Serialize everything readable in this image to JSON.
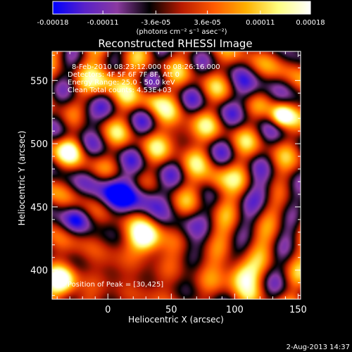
{
  "chart_data": {
    "type": "heatmap",
    "title": "Reconstructed RHESSI Image",
    "xlabel": "Heliocentric X (arcsec)",
    "ylabel": "Heliocentric Y (arcsec)",
    "xlim": [
      -44,
      152
    ],
    "ylim": [
      377,
      573
    ],
    "x_ticks": [
      0,
      50,
      100,
      150
    ],
    "y_ticks": [
      400,
      450,
      500,
      550
    ],
    "colorbar": {
      "range": [
        -0.00018,
        0.00018
      ],
      "tick_labels": [
        "-0.00018",
        "-0.00011",
        "-3.6e-05",
        "3.6e-05",
        "0.00011",
        "0.00018"
      ],
      "units": "(photons cm⁻² s⁻¹ asec⁻²)"
    },
    "annotations": [
      "8-Feb-2010 08:23:12.000 to 08:26:16.000",
      "Detectors: 4F 5F 6F 7F 8F, Att 0",
      "Energy Range: 25.0 - 50.0 keV",
      "Clean    Total counts: 4.53E+03"
    ],
    "peak_label": "Position of Peak = [30,425]",
    "peak": {
      "x": 30,
      "y": 425
    },
    "sources": [
      {
        "x": 30,
        "y": 426,
        "sigma": 9,
        "amp": 1.0
      },
      {
        "x": -36,
        "y": 392,
        "sigma": 8,
        "amp": 0.95
      },
      {
        "x": 105,
        "y": 396,
        "sigma": 9,
        "amp": 0.8
      },
      {
        "x": 137,
        "y": 522,
        "sigma": 6,
        "amp": 0.85
      },
      {
        "x": 58,
        "y": 506,
        "sigma": 8,
        "amp": 0.6
      },
      {
        "x": 0,
        "y": 551,
        "sigma": 9,
        "amp": 0.65
      },
      {
        "x": 35,
        "y": 535,
        "sigma": 7,
        "amp": 0.45
      },
      {
        "x": -30,
        "y": 495,
        "sigma": 7,
        "amp": 0.55
      },
      {
        "x": 85,
        "y": 470,
        "sigma": 8,
        "amp": 0.55
      },
      {
        "x": 5,
        "y": 463,
        "sigma": 12,
        "amp": -0.7
      },
      {
        "x": 30,
        "y": 458,
        "sigma": 10,
        "amp": -0.6
      },
      {
        "x": -18,
        "y": 520,
        "sigma": 8,
        "amp": -0.45
      },
      {
        "x": 60,
        "y": 435,
        "sigma": 9,
        "amp": -0.4
      },
      {
        "x": 110,
        "y": 540,
        "sigma": 9,
        "amp": -0.45
      },
      {
        "x": 125,
        "y": 460,
        "sigma": 9,
        "amp": -0.4
      },
      {
        "x": -25,
        "y": 440,
        "sigma": 8,
        "amp": -0.5
      }
    ],
    "colormap": [
      "#0000ff",
      "#5a22c8",
      "#8a3aa0",
      "#000000",
      "#b81a00",
      "#ff5a00",
      "#ffb000",
      "#ffff80",
      "#ffffff"
    ]
  },
  "footer_date": "2-Aug-2013 14:37"
}
